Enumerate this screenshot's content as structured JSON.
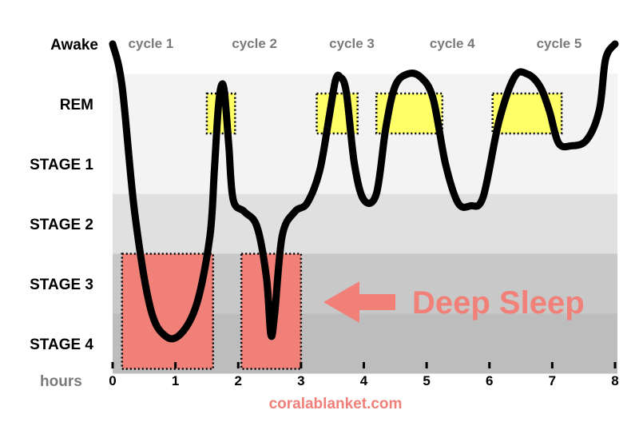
{
  "chart_data": {
    "type": "line",
    "title": "",
    "xlabel": "hours",
    "ylabel": "",
    "xlim": [
      0,
      8
    ],
    "x_ticks": [
      "0",
      "1",
      "2",
      "3",
      "4",
      "5",
      "6",
      "7",
      "8"
    ],
    "stages": [
      "Awake",
      "REM",
      "STAGE 1",
      "STAGE 2",
      "STAGE 3",
      "STAGE 4"
    ],
    "cycles": [
      {
        "label": "cycle 1",
        "x": 0.8
      },
      {
        "label": "cycle 2",
        "x": 2.45
      },
      {
        "label": "cycle 3",
        "x": 4.0
      },
      {
        "label": "cycle 4",
        "x": 5.6
      },
      {
        "label": "cycle 5",
        "x": 7.3
      }
    ],
    "series": [
      {
        "x": [
          0.0,
          0.15,
          0.35,
          0.6,
          0.85,
          1.1,
          1.35,
          1.55,
          1.62,
          1.68,
          1.73,
          1.78,
          1.85,
          1.92,
          2.1,
          2.3,
          2.45,
          2.52,
          2.58,
          2.7,
          2.9,
          3.1,
          3.3,
          3.45,
          3.55,
          3.62,
          3.72,
          3.85,
          4.0,
          4.2,
          4.35,
          4.5,
          4.7,
          4.9,
          5.1,
          5.3,
          5.5,
          5.7,
          5.9,
          6.15,
          6.4,
          6.6,
          6.8,
          6.95,
          7.1,
          7.3,
          7.55,
          7.75,
          7.85,
          8.0
        ],
        "y": [
          5.0,
          4.3,
          2.2,
          0.6,
          0.12,
          0.18,
          0.7,
          1.8,
          2.9,
          3.9,
          4.3,
          4.2,
          3.3,
          2.4,
          2.2,
          1.95,
          1.1,
          0.15,
          0.5,
          1.8,
          2.2,
          2.35,
          2.9,
          3.8,
          4.4,
          4.45,
          4.2,
          3.0,
          2.4,
          2.5,
          3.6,
          4.3,
          4.5,
          4.45,
          4.1,
          3.0,
          2.35,
          2.3,
          2.45,
          3.7,
          4.45,
          4.5,
          4.3,
          3.9,
          3.35,
          3.3,
          3.4,
          3.9,
          4.75,
          5.0
        ]
      }
    ],
    "rem_boxes": [
      {
        "x0": 1.5,
        "x1": 1.95
      },
      {
        "x0": 3.25,
        "x1": 3.9
      },
      {
        "x0": 4.2,
        "x1": 5.25
      },
      {
        "x0": 6.05,
        "x1": 7.15
      }
    ],
    "deep_sleep_boxes": [
      {
        "x0": 0.15,
        "x1": 1.6
      },
      {
        "x0": 2.05,
        "x1": 3.0
      }
    ],
    "annotation": "Deep Sleep",
    "credit": "coralablanket.com",
    "colors": {
      "line": "#000000",
      "rem_box": "#ffff66",
      "deep_box": "#f08078",
      "annotation": "#f08078",
      "band_light": "#f3f3f3",
      "band_mid": "#e0e0e0",
      "band_dark": "#c8c8c8",
      "band_darker": "#bdbdbd"
    }
  }
}
